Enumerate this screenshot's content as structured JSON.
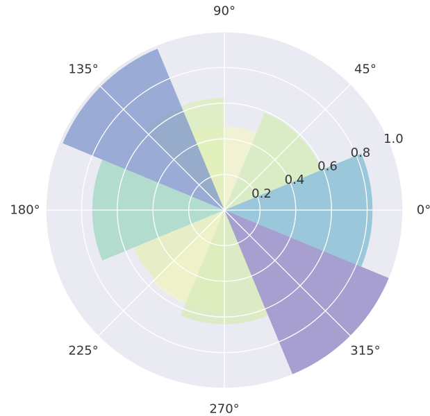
{
  "chart_data": {
    "type": "bar",
    "projection": "polar",
    "grid": true,
    "rlim": [
      0,
      1.0
    ],
    "r_ticks": [
      0.2,
      0.4,
      0.6,
      0.8,
      1.0
    ],
    "r_tick_labels": [
      "0.2",
      "0.4",
      "0.6",
      "0.8",
      "1.0"
    ],
    "theta_tick_labels": [
      "0°",
      "45°",
      "90°",
      "135°",
      "180°",
      "225°",
      "270°",
      "315°"
    ],
    "theta_ticks_deg": [
      0,
      45,
      90,
      135,
      180,
      225,
      270,
      315
    ],
    "bars": [
      {
        "theta_deg": 0,
        "width_deg": 45,
        "value": 0.83,
        "color": "#7fbcd2",
        "alpha": 0.75
      },
      {
        "theta_deg": 45,
        "width_deg": 45,
        "value": 0.59,
        "color": "#d3ecb2",
        "alpha": 0.7
      },
      {
        "theta_deg": 90,
        "width_deg": 45,
        "value": 0.47,
        "color": "#f4f5c8",
        "alpha": 0.7
      },
      {
        "theta_deg": 112,
        "width_deg": 45,
        "value": 0.63,
        "color": "#dcefb5",
        "alpha": 0.7
      },
      {
        "theta_deg": 135,
        "width_deg": 45,
        "value": 0.98,
        "color": "#7f96cc",
        "alpha": 0.75
      },
      {
        "theta_deg": 180,
        "width_deg": 45,
        "value": 0.74,
        "color": "#9fd7c2",
        "alpha": 0.75
      },
      {
        "theta_deg": 225,
        "width_deg": 45,
        "value": 0.55,
        "color": "#e5f0b5",
        "alpha": 0.7
      },
      {
        "theta_deg": 247,
        "width_deg": 45,
        "value": 0.57,
        "color": "#f2f3cb",
        "alpha": 0.7
      },
      {
        "theta_deg": 270,
        "width_deg": 45,
        "value": 0.64,
        "color": "#d6ebb2",
        "alpha": 0.7
      },
      {
        "theta_deg": 315,
        "width_deg": 45,
        "value": 1.0,
        "color": "#8f86c3",
        "alpha": 0.75
      }
    ],
    "colors": {
      "background": "#eaeaf2",
      "grid": "#ffffff",
      "text": "#333333"
    }
  }
}
